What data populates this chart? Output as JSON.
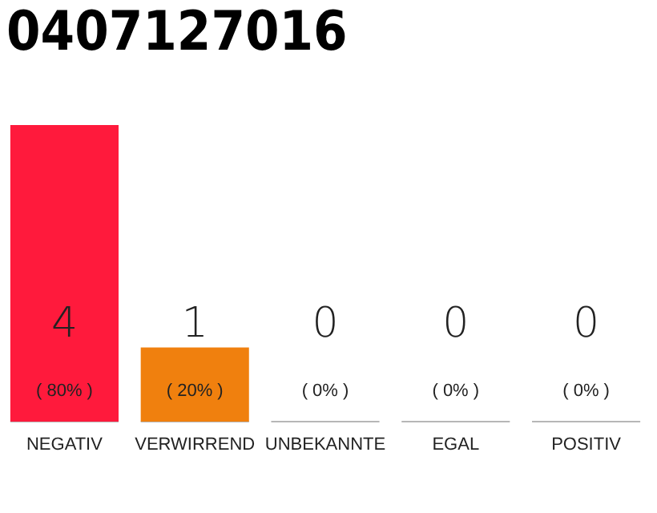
{
  "chart_data": {
    "type": "bar",
    "title": "0407127016",
    "categories": [
      "NEGATIV",
      "VERWIRREND",
      "UNBEKANNTE",
      "EGAL",
      "POSITIV"
    ],
    "values": [
      4,
      1,
      0,
      0,
      0
    ],
    "colors": [
      "#ff1a3c",
      "#f0800e",
      "#e0e0e0",
      "#e0e0e0",
      "#e0e0e0"
    ],
    "data_labels": true,
    "annotations": [
      "( 80% )",
      "( 20% )",
      "( 0% )",
      "( 0% )",
      "( 0% )"
    ],
    "tick_labels": "x",
    "grid": false,
    "legend": false
  }
}
